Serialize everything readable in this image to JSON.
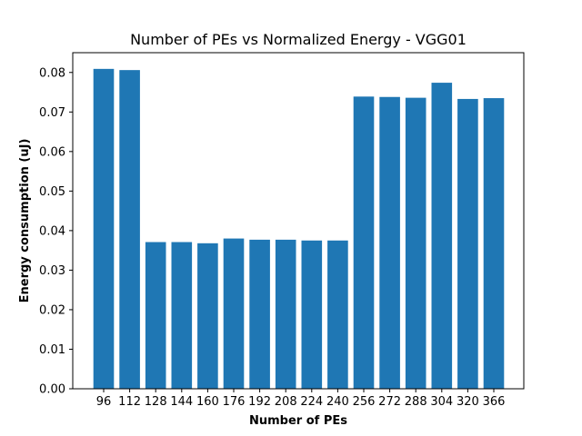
{
  "chart_data": {
    "type": "bar",
    "title": "Number of PEs vs Normalized Energy - VGG01",
    "xlabel": "Number of PEs",
    "ylabel": "Energy consumption (uJ)",
    "categories": [
      "96",
      "112",
      "128",
      "144",
      "160",
      "176",
      "192",
      "208",
      "224",
      "240",
      "256",
      "272",
      "288",
      "304",
      "320",
      "366"
    ],
    "values": [
      0.0809,
      0.0806,
      0.0371,
      0.0371,
      0.0368,
      0.038,
      0.0377,
      0.0377,
      0.0375,
      0.0375,
      0.0739,
      0.0738,
      0.0736,
      0.0774,
      0.0733,
      0.0735
    ],
    "ylim": [
      0,
      0.085
    ],
    "yticks": [
      "0.00",
      "0.01",
      "0.02",
      "0.03",
      "0.04",
      "0.05",
      "0.06",
      "0.07",
      "0.08"
    ],
    "bar_color": "#1f77b4",
    "grid": false,
    "legend": "none"
  }
}
